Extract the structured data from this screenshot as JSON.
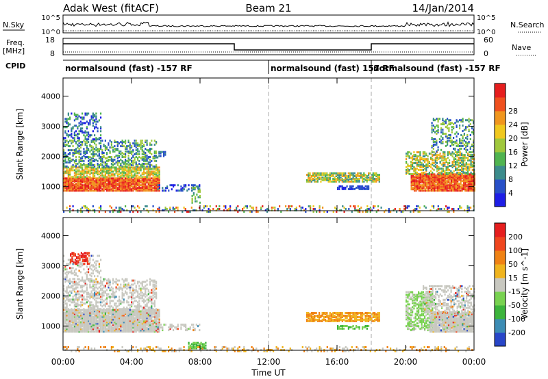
{
  "header": {
    "station": "Adak West (fitACF)",
    "beam": "Beam 21",
    "date": "14/Jan/2014"
  },
  "summary_panels": {
    "nsky_label": "N.Sky",
    "nsky_ticks": [
      "10^5",
      "10^0"
    ],
    "nsearch_label": "N.Search",
    "nsearch_ticks": [
      "10^5",
      "10^0"
    ],
    "freq_label": "Freq.",
    "freq_unit": "[MHz]",
    "freq_ticks": [
      "18",
      "8"
    ],
    "nave_label": "Nave",
    "nave_ticks": [
      "60",
      "0"
    ],
    "cpid_label": "CPID",
    "cpid_segments": [
      {
        "label": "normalsound (fast) -157 RF",
        "start_hour": 0
      },
      {
        "label": "normalsound (fast) 157 RF",
        "start_hour": 12
      },
      {
        "label": "normalsound (fast) -157 RF",
        "start_hour": 18
      }
    ]
  },
  "chart_data": [
    {
      "type": "heatmap",
      "name": "power",
      "ylabel": "Slant Range [km]",
      "yticks": [
        "1000",
        "2000",
        "3000",
        "4000"
      ],
      "ylim": [
        200,
        4600
      ],
      "xlim": [
        0,
        24
      ],
      "colorbar_label": "Power [dB]",
      "colorbar_ticks": [
        "4",
        "8",
        "12",
        "16",
        "20",
        "24",
        "28"
      ],
      "colors": [
        "#1e1ee6",
        "#2850c8",
        "#3c8c8c",
        "#50b450",
        "#a0c83c",
        "#f0c81e",
        "#f0961e",
        "#f0501e",
        "#e61e1e"
      ],
      "vertical_markers_hours": [
        12,
        18
      ]
    },
    {
      "type": "heatmap",
      "name": "velocity",
      "ylabel": "Slant Range [km]",
      "yticks": [
        "1000",
        "2000",
        "3000",
        "4000"
      ],
      "ylim": [
        200,
        4600
      ],
      "xlim": [
        0,
        24
      ],
      "colorbar_label": "Velocity [m s^-1]",
      "colorbar_ticks": [
        "200",
        "100",
        "50",
        "15",
        "-15",
        "-50",
        "-100",
        "-200"
      ],
      "colors": [
        "#2846c8",
        "#3c8cb4",
        "#3cb43c",
        "#78d250",
        "#c8c8c0",
        "#f0b41e",
        "#f08214",
        "#f0461e",
        "#e61e1e"
      ],
      "vertical_markers_hours": [
        12,
        18
      ]
    }
  ],
  "xaxis": {
    "label": "Time UT",
    "ticks": [
      "00:00",
      "04:00",
      "08:00",
      "12:00",
      "16:00",
      "20:00",
      "00:00"
    ]
  }
}
